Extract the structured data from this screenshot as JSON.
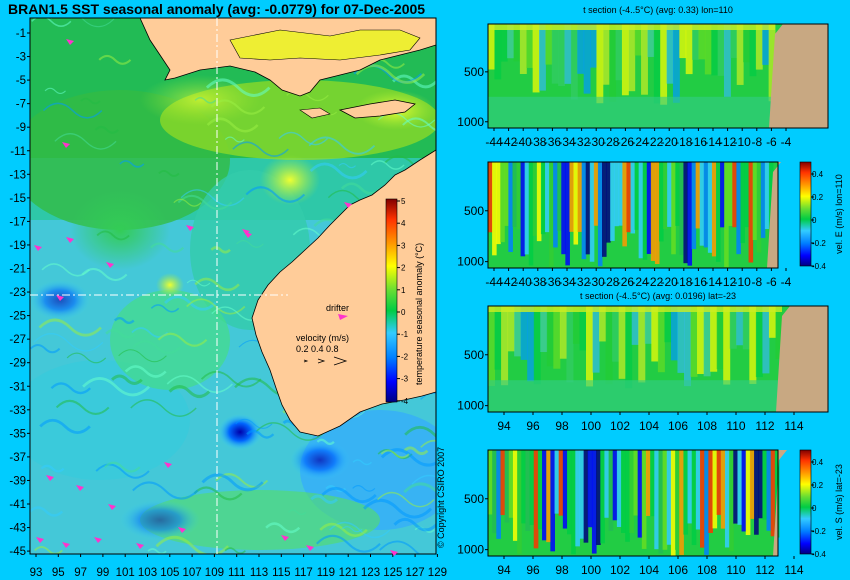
{
  "title": "BRAN1.5 SST seasonal anomaly (avg: -0.0779) for 07-Dec-2005",
  "copyright": "© Copyright CSIRO 2007",
  "colors": {
    "background": "#00ccff",
    "land": "#ffcc99",
    "section_land": "#c8a882",
    "drifter": "#ff33cc",
    "colormap": [
      "#000080",
      "#0000ff",
      "#0080ff",
      "#33ccff",
      "#66ffcc",
      "#33cc66",
      "#00cc33",
      "#99dd33",
      "#ffff00",
      "#ff9900",
      "#ff3300",
      "#800000"
    ]
  },
  "map_legend": {
    "drifter_label": "drifter",
    "velocity_label": "velocity (m/s)",
    "velocity_values": "0.2 0.4 0.8",
    "colorbar_label": "temperature seasonal anomaly (°C)"
  },
  "chart_data": [
    {
      "type": "heatmap",
      "id": "sst-map",
      "title": "BRAN1.5 SST seasonal anomaly (avg: -0.0779) for 07-Dec-2005",
      "x_ticks": [
        "93",
        "95",
        "97",
        "99",
        "101",
        "103",
        "105",
        "107",
        "109",
        "111",
        "113",
        "115",
        "117",
        "119",
        "121",
        "123",
        "125",
        "127",
        "129"
      ],
      "y_ticks": [
        "-1",
        "-3",
        "-5",
        "-7",
        "-9",
        "-11",
        "-13",
        "-15",
        "-17",
        "-19",
        "-21",
        "-23",
        "-25",
        "-27",
        "-29",
        "-31",
        "-33",
        "-35",
        "-37",
        "-39",
        "-41",
        "-43",
        "-45"
      ],
      "xlim": [
        93,
        130
      ],
      "ylim": [
        -45,
        0
      ],
      "crosshair": {
        "lon": 110,
        "lat": -23
      },
      "colorbar": {
        "label": "temperature seasonal anomaly (°C)",
        "ticks": [
          "5",
          "4",
          "3",
          "2",
          "1",
          "0",
          "-1",
          "-2",
          "-3",
          "-4"
        ],
        "range": [
          -4,
          5
        ]
      }
    },
    {
      "type": "heatmap",
      "id": "t-section-lon",
      "title": "t section (-4..5°C) (avg: 0.33) lon=110",
      "x_ticks": [
        "-44",
        "-42",
        "-40",
        "-38",
        "-36",
        "-34",
        "-32",
        "-30",
        "-28",
        "-26",
        "-24",
        "-22",
        "-20",
        "-18",
        "-16",
        "-14",
        "-12",
        "-10",
        "-8",
        "-6",
        "-4"
      ],
      "y_ticks": [
        "500",
        "1000"
      ]
    },
    {
      "type": "heatmap",
      "id": "vel-e-section",
      "title": "",
      "x_ticks": [
        "-44",
        "-42",
        "-40",
        "-38",
        "-36",
        "-34",
        "-32",
        "-30",
        "-28",
        "-26",
        "-24",
        "-22",
        "-20",
        "-18",
        "-16",
        "-14",
        "-12",
        "-10",
        "-8",
        "-6",
        "-4"
      ],
      "y_ticks": [
        "500",
        "1000"
      ],
      "colorbar": {
        "label": "vel. E (m/s) lon=110",
        "ticks": [
          "0.4",
          "0.2",
          "0",
          "-0.2",
          "-0.4"
        ]
      }
    },
    {
      "type": "heatmap",
      "id": "t-section-lat",
      "title": "t section (-4..5°C) (avg: 0.0196) lat=-23",
      "x_ticks": [
        "94",
        "96",
        "98",
        "100",
        "102",
        "104",
        "106",
        "108",
        "110",
        "112",
        "114"
      ],
      "y_ticks": [
        "500",
        "1000"
      ]
    },
    {
      "type": "heatmap",
      "id": "vel-s-section",
      "title": "",
      "x_ticks": [
        "94",
        "96",
        "98",
        "100",
        "102",
        "104",
        "106",
        "108",
        "110",
        "112",
        "114"
      ],
      "y_ticks": [
        "500",
        "1000"
      ],
      "colorbar": {
        "label": "vel. S (m/s) lat=-23",
        "ticks": [
          "0.4",
          "0.2",
          "0",
          "-0.2",
          "-0.4"
        ]
      }
    }
  ]
}
